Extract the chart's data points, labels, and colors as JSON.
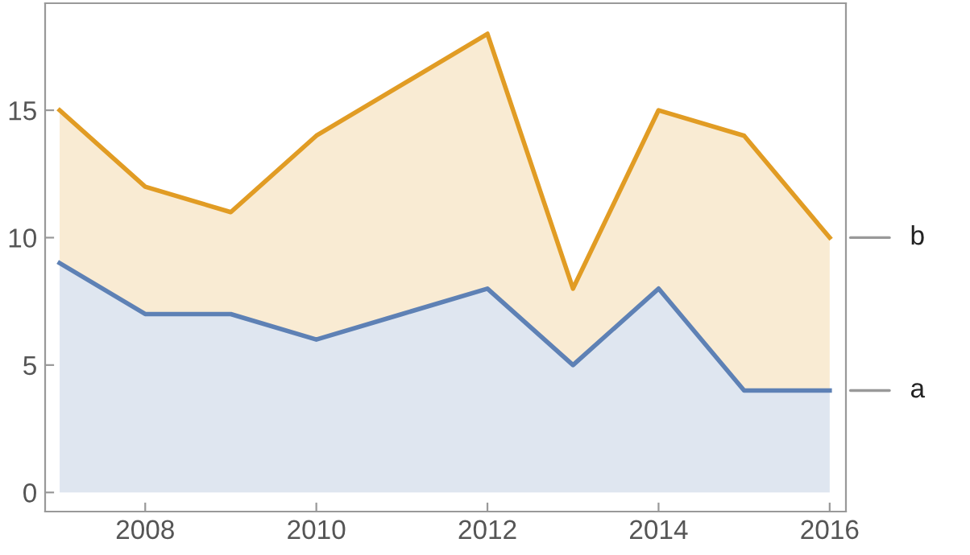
{
  "chart_data": {
    "type": "area",
    "x": [
      2007,
      2008,
      2009,
      2010,
      2011,
      2012,
      2013,
      2014,
      2015,
      2016
    ],
    "series": [
      {
        "name": "a",
        "color": "#5e81b5",
        "values": [
          9,
          7,
          7,
          6,
          7,
          8,
          5,
          8,
          4,
          4
        ]
      },
      {
        "name": "b",
        "color": "#e19c24",
        "values": [
          15,
          12,
          11,
          14,
          16,
          18,
          8,
          15,
          14,
          10
        ]
      }
    ],
    "xlim": [
      2006.83,
      2016.19
    ],
    "ylim": [
      -0.75,
      19.2
    ],
    "xticks": [
      2008,
      2010,
      2012,
      2014,
      2016
    ],
    "yticks": [
      0,
      5,
      10,
      15
    ],
    "grid": false,
    "legend": false
  }
}
